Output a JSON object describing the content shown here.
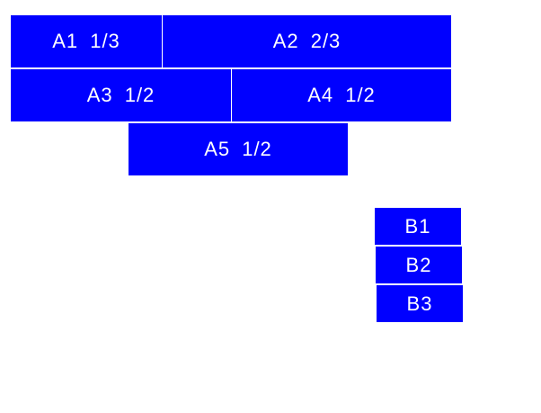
{
  "colors": {
    "box": "#0000ff",
    "text": "#ffffff"
  },
  "group_a": [
    {
      "label": "A1 1/3"
    },
    {
      "label": "A2 2/3"
    },
    {
      "label": "A3 1/2"
    },
    {
      "label": "A4 1/2"
    },
    {
      "label": "A5 1/2"
    }
  ],
  "group_b": [
    {
      "label": "B1"
    },
    {
      "label": "B2"
    },
    {
      "label": "B3"
    }
  ]
}
